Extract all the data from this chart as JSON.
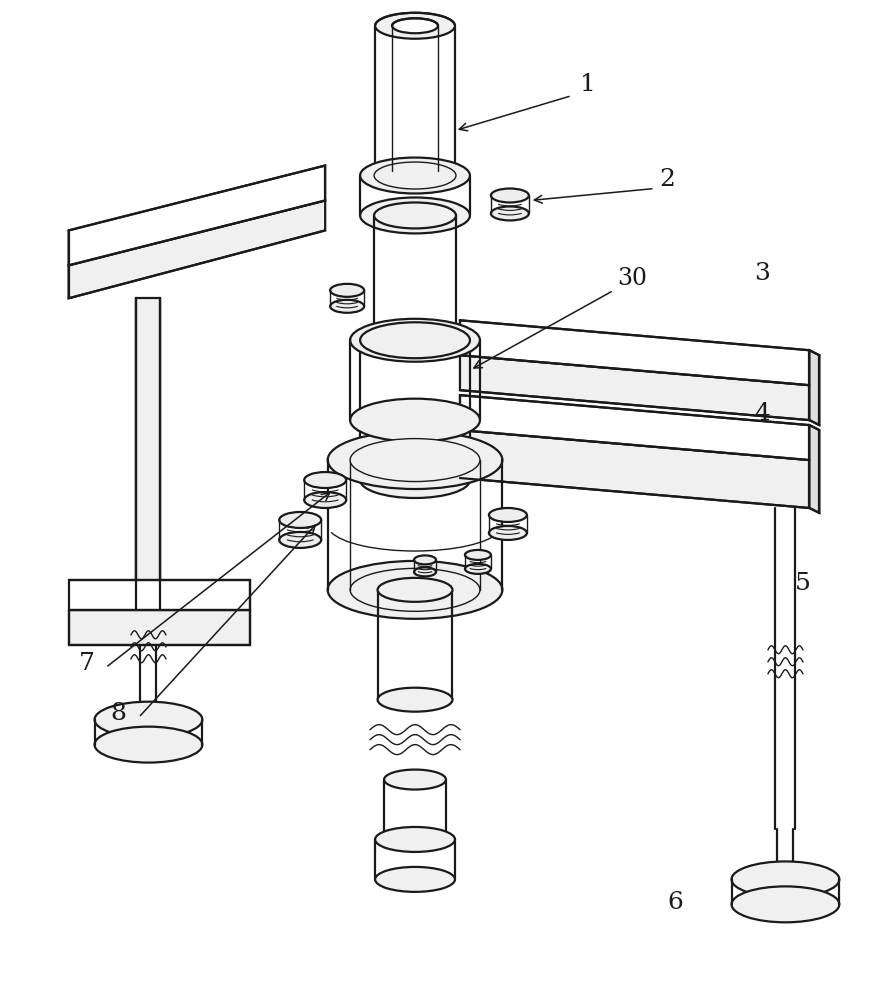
{
  "bg": "#ffffff",
  "lc": "#1a1a1a",
  "lw": 1.6,
  "tlw": 1.0,
  "fig_w": 8.72,
  "fig_h": 10.0,
  "dpi": 100
}
